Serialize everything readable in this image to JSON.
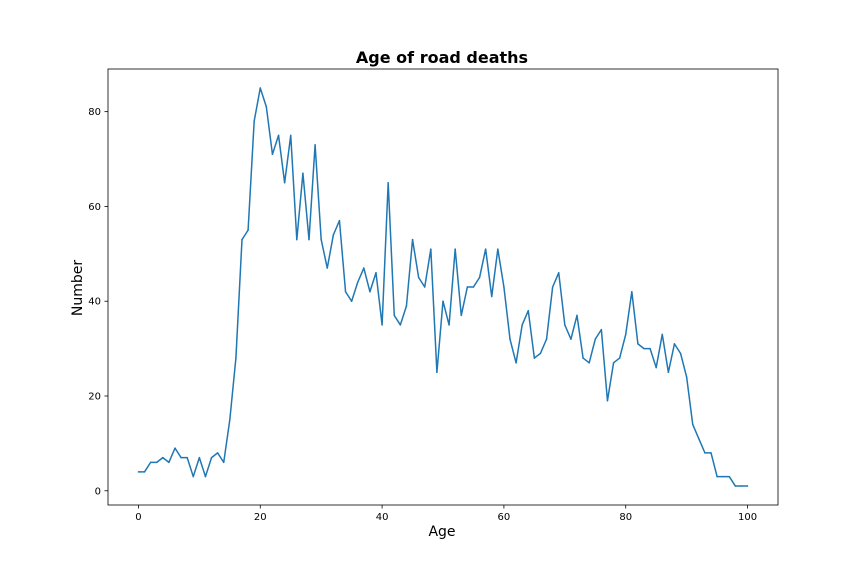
{
  "chart_data": {
    "type": "line",
    "title": "Age of road deaths",
    "xlabel": "Age",
    "ylabel": "Number",
    "xlim": [
      -5,
      105
    ],
    "ylim": [
      -3,
      89
    ],
    "xticks": [
      0,
      20,
      40,
      60,
      80,
      100
    ],
    "yticks": [
      0,
      20,
      40,
      60,
      80
    ],
    "grid": false,
    "color": "#1f77b4",
    "series": [
      {
        "x": [
          0,
          1,
          2,
          3,
          4,
          5,
          6,
          7,
          8,
          9,
          10,
          11,
          12,
          13,
          14,
          15,
          16,
          17,
          18,
          19,
          20,
          21,
          22,
          23,
          24,
          25,
          26,
          27,
          28,
          29,
          30,
          31,
          32,
          33,
          34,
          35,
          36,
          37,
          38,
          39,
          40,
          41,
          42,
          43,
          44,
          45,
          46,
          47,
          48,
          49,
          50,
          51,
          52,
          53,
          54,
          55,
          56,
          57,
          58,
          59,
          60,
          61,
          62,
          63,
          64,
          65,
          66,
          67,
          68,
          69,
          70,
          71,
          72,
          73,
          74,
          75,
          76,
          77,
          78,
          79,
          80,
          81,
          82,
          83,
          84,
          85,
          86,
          87,
          88,
          89,
          90,
          91,
          92,
          93,
          94,
          95,
          96,
          97,
          98,
          99,
          100
        ],
        "values": [
          4,
          4,
          6,
          6,
          7,
          6,
          9,
          7,
          7,
          3,
          7,
          3,
          7,
          8,
          6,
          15,
          28,
          53,
          55,
          78,
          85,
          81,
          71,
          75,
          65,
          75,
          53,
          67,
          53,
          73,
          53,
          47,
          54,
          57,
          42,
          40,
          44,
          47,
          42,
          46,
          35,
          65,
          37,
          35,
          39,
          53,
          45,
          43,
          51,
          25,
          40,
          35,
          51,
          37,
          43,
          43,
          45,
          51,
          41,
          51,
          43,
          32,
          27,
          35,
          38,
          28,
          29,
          32,
          43,
          46,
          35,
          32,
          37,
          28,
          27,
          32,
          34,
          19,
          27,
          28,
          33,
          42,
          31,
          30,
          30,
          26,
          33,
          25,
          31,
          29,
          24,
          14,
          11,
          8,
          8,
          3,
          3,
          3,
          1,
          1,
          1
        ]
      }
    ]
  }
}
